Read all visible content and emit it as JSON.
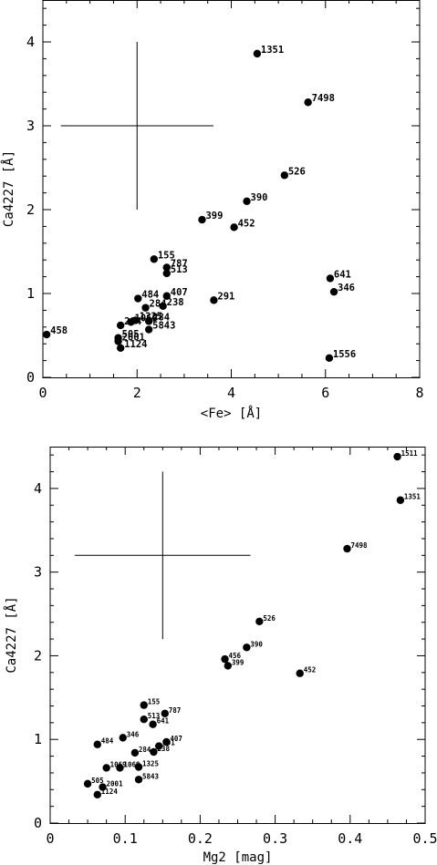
{
  "chart_data": [
    {
      "type": "scatter",
      "xlabel": "<Fe> [Å]",
      "ylabel": "Ca4227 [Å]",
      "xlim": [
        0,
        8
      ],
      "ylim": [
        0,
        4.5
      ],
      "xticks": [
        0,
        2,
        4,
        6,
        8
      ],
      "yticks": [
        0,
        1,
        2,
        3,
        4
      ],
      "grid": false,
      "error_bar": {
        "x": 2.0,
        "y": 3.0,
        "xerr": 1.62,
        "yerr": 1.0
      },
      "points": [
        {
          "label": "1351",
          "x": 4.55,
          "y": 3.86
        },
        {
          "label": "7498",
          "x": 5.63,
          "y": 3.28
        },
        {
          "label": "526",
          "x": 5.13,
          "y": 2.41
        },
        {
          "label": "390",
          "x": 4.33,
          "y": 2.1
        },
        {
          "label": "399",
          "x": 3.38,
          "y": 1.88
        },
        {
          "label": "452",
          "x": 4.06,
          "y": 1.79
        },
        {
          "label": "155",
          "x": 2.36,
          "y": 1.41
        },
        {
          "label": "787",
          "x": 2.63,
          "y": 1.31
        },
        {
          "label": "513",
          "x": 2.63,
          "y": 1.24
        },
        {
          "label": "641",
          "x": 6.1,
          "y": 1.18
        },
        {
          "label": "346",
          "x": 6.18,
          "y": 1.02
        },
        {
          "label": "407",
          "x": 2.63,
          "y": 0.97
        },
        {
          "label": "484",
          "x": 2.02,
          "y": 0.94
        },
        {
          "label": "291",
          "x": 3.63,
          "y": 0.92
        },
        {
          "label": "238",
          "x": 2.55,
          "y": 0.85
        },
        {
          "label": "284",
          "x": 2.18,
          "y": 0.83
        },
        {
          "label": "1325",
          "x": 1.97,
          "y": 0.68
        },
        {
          "label": "1069",
          "x": 1.87,
          "y": 0.66
        },
        {
          "label": "284",
          "x": 2.25,
          "y": 0.67
        },
        {
          "label": "284",
          "x": 1.65,
          "y": 0.62
        },
        {
          "label": "5843",
          "x": 2.25,
          "y": 0.57
        },
        {
          "label": "458",
          "x": 0.08,
          "y": 0.51
        },
        {
          "label": "505",
          "x": 1.6,
          "y": 0.47
        },
        {
          "label": "2001",
          "x": 1.6,
          "y": 0.43
        },
        {
          "label": "1124",
          "x": 1.65,
          "y": 0.35
        },
        {
          "label": "1556",
          "x": 6.08,
          "y": 0.23
        }
      ]
    },
    {
      "type": "scatter",
      "xlabel": "Mg2 [mag]",
      "ylabel": "Ca4227 [Å]",
      "xlim": [
        0,
        0.5
      ],
      "ylim": [
        0,
        4.5
      ],
      "xticks": [
        0,
        0.1,
        0.2,
        0.3,
        0.4,
        0.5
      ],
      "yticks": [
        0,
        1,
        2,
        3,
        4
      ],
      "grid": false,
      "error_bar": {
        "x": 0.15,
        "y": 3.2,
        "xerr": 0.117,
        "yerr": 1.0
      },
      "points": [
        {
          "label": "1511",
          "x": 0.463,
          "y": 4.38
        },
        {
          "label": "1351",
          "x": 0.467,
          "y": 3.86
        },
        {
          "label": "7498",
          "x": 0.396,
          "y": 3.28
        },
        {
          "label": "526",
          "x": 0.279,
          "y": 2.41
        },
        {
          "label": "390",
          "x": 0.262,
          "y": 2.1
        },
        {
          "label": "456",
          "x": 0.233,
          "y": 1.96
        },
        {
          "label": "399",
          "x": 0.237,
          "y": 1.88
        },
        {
          "label": "452",
          "x": 0.333,
          "y": 1.79
        },
        {
          "label": "155",
          "x": 0.125,
          "y": 1.41
        },
        {
          "label": "787",
          "x": 0.153,
          "y": 1.31
        },
        {
          "label": "513",
          "x": 0.125,
          "y": 1.24
        },
        {
          "label": "641",
          "x": 0.137,
          "y": 1.18
        },
        {
          "label": "346",
          "x": 0.097,
          "y": 1.02
        },
        {
          "label": "407",
          "x": 0.155,
          "y": 0.97
        },
        {
          "label": "484",
          "x": 0.063,
          "y": 0.94
        },
        {
          "label": "291",
          "x": 0.145,
          "y": 0.92
        },
        {
          "label": "238",
          "x": 0.138,
          "y": 0.85
        },
        {
          "label": "284",
          "x": 0.113,
          "y": 0.84
        },
        {
          "label": "1069",
          "x": 0.075,
          "y": 0.66
        },
        {
          "label": "1069",
          "x": 0.093,
          "y": 0.66
        },
        {
          "label": "1325",
          "x": 0.118,
          "y": 0.67
        },
        {
          "label": "5843",
          "x": 0.118,
          "y": 0.52
        },
        {
          "label": "505",
          "x": 0.05,
          "y": 0.47
        },
        {
          "label": "2001",
          "x": 0.07,
          "y": 0.43
        },
        {
          "label": "1124",
          "x": 0.063,
          "y": 0.34
        }
      ]
    }
  ]
}
